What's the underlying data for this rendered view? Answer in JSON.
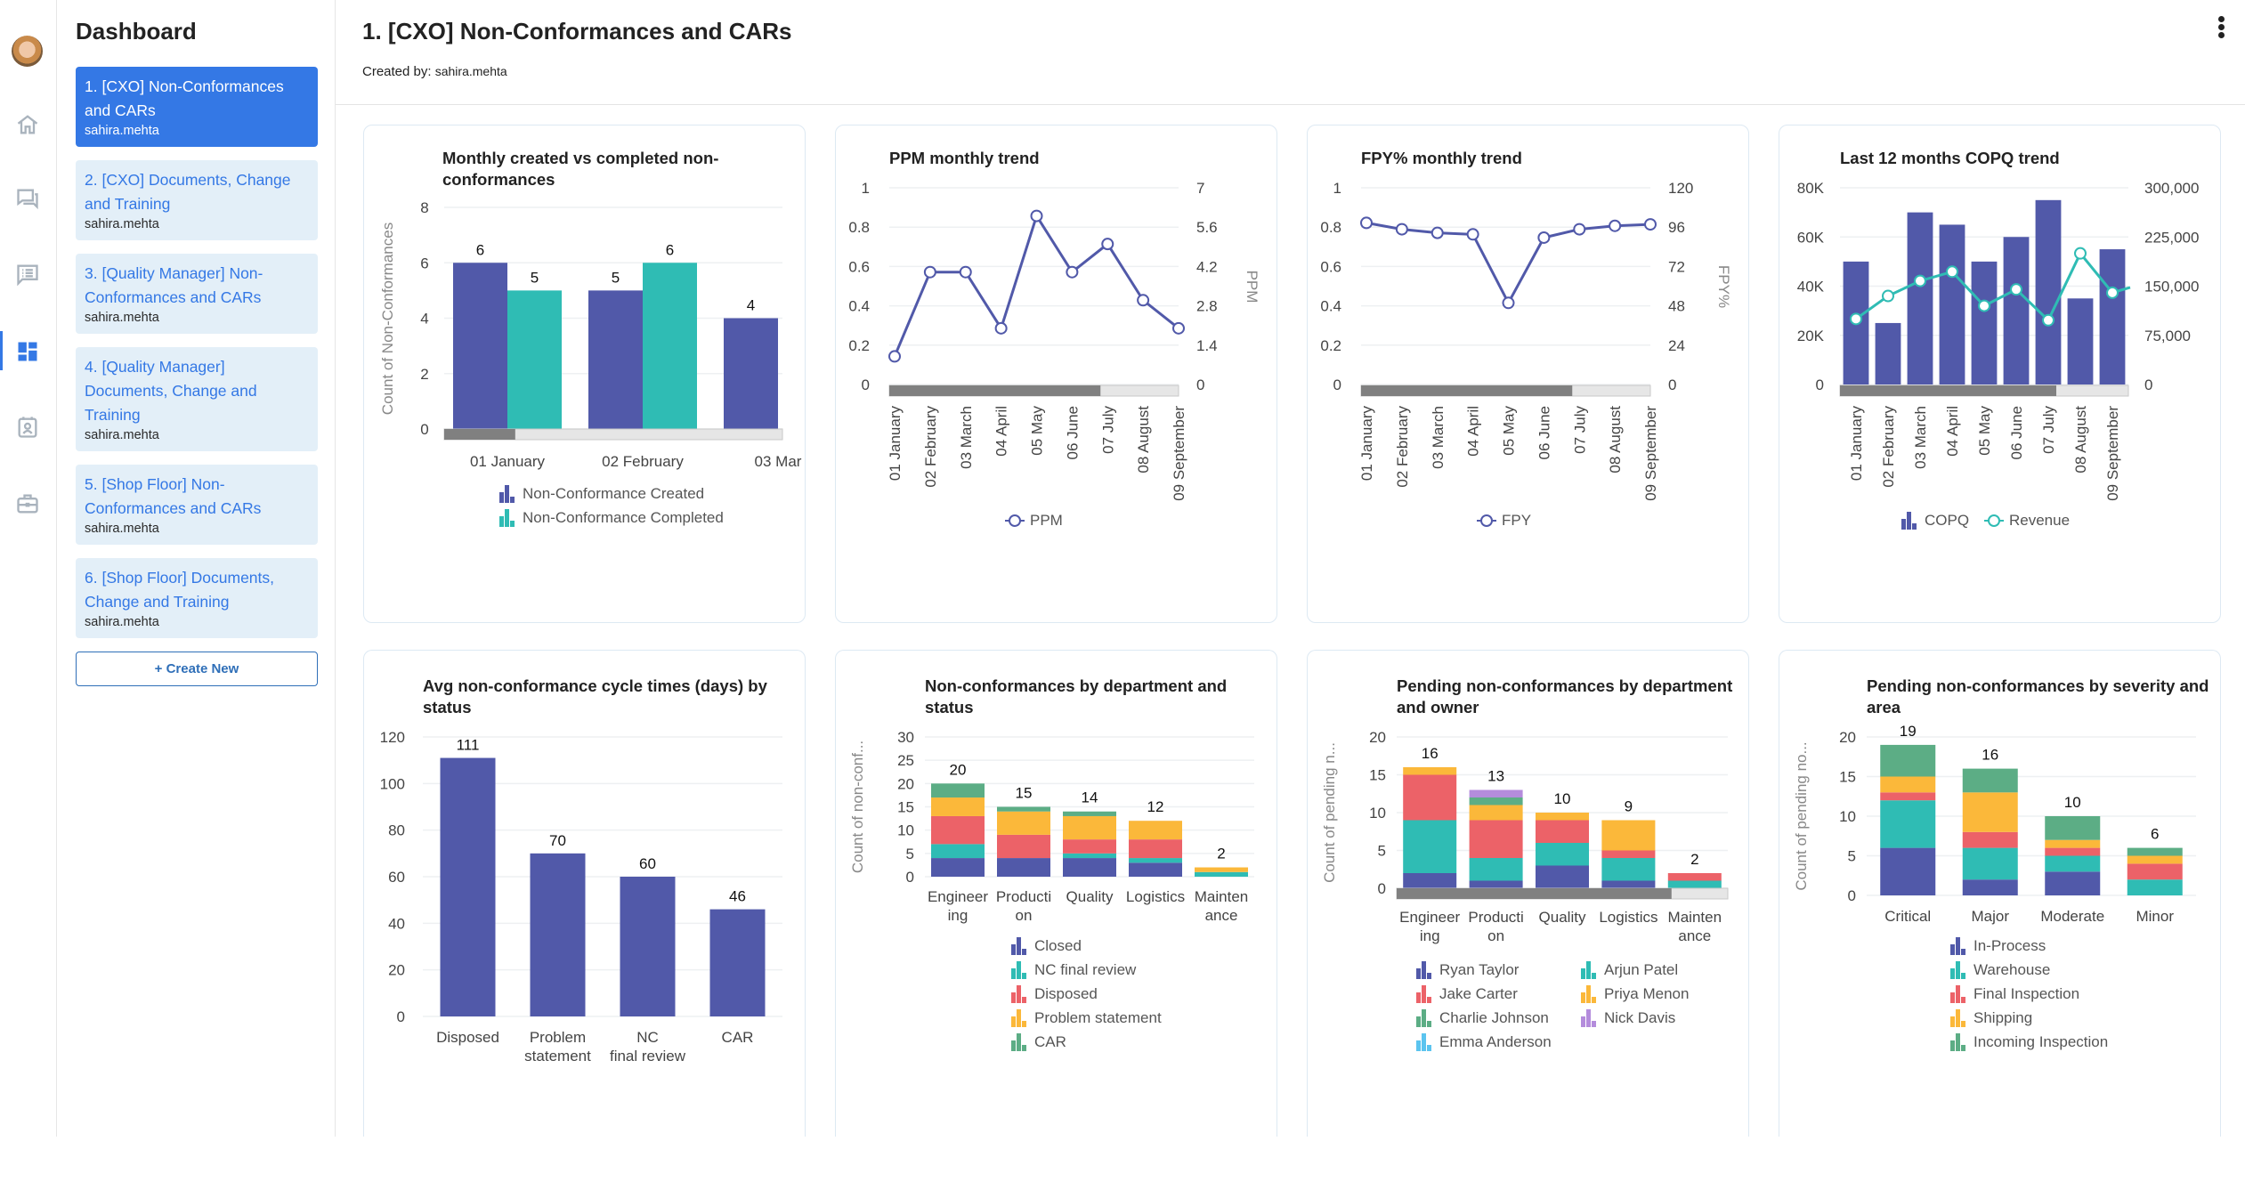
{
  "rail": {
    "icons": [
      "avatar",
      "home-icon",
      "chat-icon",
      "feed-icon",
      "dashboard-icon",
      "contact-card-icon",
      "briefcase-icon"
    ],
    "active": "dashboard-icon"
  },
  "sidebar": {
    "title": "Dashboard",
    "items": [
      {
        "title": "1. [CXO] Non-Conformances and CARs",
        "owner": "sahira.mehta",
        "active": true
      },
      {
        "title": "2. [CXO] Documents, Change and Training",
        "owner": "sahira.mehta",
        "active": false
      },
      {
        "title": "3. [Quality Manager] Non-Conformances and CARs",
        "owner": "sahira.mehta",
        "active": false
      },
      {
        "title": "4. [Quality Manager] Documents, Change and Training",
        "owner": "sahira.mehta",
        "active": false
      },
      {
        "title": "5. [Shop Floor] Non-Conformances and CARs",
        "owner": "sahira.mehta",
        "active": false
      },
      {
        "title": "6. [Shop Floor] Documents, Change and Training",
        "owner": "sahira.mehta",
        "active": false
      }
    ],
    "create_label": "+ Create New"
  },
  "header": {
    "title": "1. [CXO] Non-Conformances and CARs",
    "created_by_label": "Created by:",
    "created_by_user": "sahira.mehta",
    "menu_icon": "more-vertical-icon"
  },
  "colors": {
    "purple": "#5159a9",
    "teal": "#2fbcb4",
    "red": "#ec6268",
    "yellow": "#fbb83a",
    "green": "#5cad85",
    "lavender": "#b48cdc",
    "lightblue": "#5bc4ef",
    "accent": "#3478e5"
  },
  "chart_data": [
    {
      "id": "monthly-created-completed",
      "type": "bar",
      "title": "Monthly created vs completed non-conformances",
      "xlabel": "",
      "ylabel": "Count of Non-Conformances",
      "ylim": [
        0,
        8
      ],
      "yticks": [
        "0",
        "2",
        "4",
        "6",
        "8"
      ],
      "categories": [
        "01 January",
        "02 February",
        "03 Mar"
      ],
      "series": [
        {
          "name": "Non-Conformance Created",
          "color": "#5159a9",
          "values": [
            6,
            5,
            4
          ]
        },
        {
          "name": "Non-Conformance Completed",
          "color": "#2fbcb4",
          "values": [
            5,
            6,
            null
          ]
        }
      ],
      "data_labels": true,
      "scrollbar_fraction": 0.21,
      "legend": "bottom"
    },
    {
      "id": "ppm-monthly-trend",
      "type": "line",
      "title": "PPM monthly trend",
      "ylabel_right": "PPM",
      "yticks_left": [
        "0",
        "0.2",
        "0.4",
        "0.6",
        "0.8",
        "1"
      ],
      "yticks_right": [
        "0",
        "1.4",
        "2.8",
        "4.2",
        "5.6",
        "7"
      ],
      "ylim_right": [
        0,
        7
      ],
      "categories": [
        "01 January",
        "02 February",
        "03 March",
        "04 April",
        "05 May",
        "06 June",
        "07 July",
        "08 August",
        "09 September"
      ],
      "series": [
        {
          "name": "PPM",
          "color": "#5159a9",
          "axis": "right",
          "values": [
            1,
            4,
            4,
            2,
            6,
            4,
            5,
            3,
            2
          ]
        }
      ],
      "scrollbar_fraction": 0.73,
      "legend": "bottom"
    },
    {
      "id": "fpy-monthly-trend",
      "type": "line",
      "title": "FPY% monthly trend",
      "ylabel_right": "FPY%",
      "yticks_left": [
        "0",
        "0.2",
        "0.4",
        "0.6",
        "0.8",
        "1"
      ],
      "yticks_right": [
        "0",
        "24",
        "48",
        "72",
        "96",
        "120"
      ],
      "ylim_right": [
        0,
        120
      ],
      "categories": [
        "01 January",
        "02 February",
        "03 March",
        "04 April",
        "05 May",
        "06 June",
        "07 July",
        "08 August",
        "09 September"
      ],
      "series": [
        {
          "name": "FPY",
          "color": "#5159a9",
          "axis": "right",
          "values": [
            98.6,
            94.7,
            92.5,
            91.6,
            49.8,
            89.6,
            94.7,
            96.8,
            97.7
          ]
        }
      ],
      "scrollbar_fraction": 0.73,
      "legend": "bottom"
    },
    {
      "id": "copq-trend",
      "type": "bar",
      "title": "Last 12 months COPQ trend",
      "yticks_left": [
        "0",
        "20K",
        "40K",
        "60K",
        "80K"
      ],
      "ylim_left": [
        0,
        80000
      ],
      "yticks_right": [
        "0",
        "75,000",
        "150,000",
        "225,000",
        "300,000"
      ],
      "ylim_right": [
        0,
        300000
      ],
      "categories": [
        "01 January",
        "02 February",
        "03 March",
        "04 April",
        "05 May",
        "06 June",
        "07 July",
        "08 August",
        "09 September"
      ],
      "series": [
        {
          "name": "COPQ",
          "kind": "bar",
          "color": "#5159a9",
          "axis": "left",
          "values": [
            50000,
            25000,
            70000,
            65000,
            50000,
            60000,
            75000,
            35000,
            55000
          ]
        },
        {
          "name": "Revenue",
          "kind": "line",
          "color": "#2fbcb4",
          "axis": "right",
          "values": [
            100000,
            135000,
            158000,
            172000,
            120000,
            145000,
            98000,
            200000,
            140000
          ]
        }
      ],
      "scrollbar_fraction": 0.75,
      "legend": "bottom"
    },
    {
      "id": "cycle-times",
      "type": "bar",
      "title": "Avg non-conformance cycle times (days) by status",
      "ylim": [
        0,
        120
      ],
      "yticks": [
        "0",
        "20",
        "40",
        "60",
        "80",
        "100",
        "120"
      ],
      "categories": [
        "Disposed",
        "Problem statement",
        "NC final review",
        "CAR"
      ],
      "values": [
        111,
        70,
        60,
        46
      ],
      "color": "#5159a9",
      "data_labels": true
    },
    {
      "id": "nc-by-dept-status",
      "type": "bar",
      "stacked": true,
      "title": "Non-conformances by department and status",
      "ylabel": "Count of non-conf...",
      "ylim": [
        0,
        30
      ],
      "yticks": [
        "0",
        "5",
        "10",
        "15",
        "20",
        "25",
        "30"
      ],
      "categories": [
        "Engineering",
        "Production",
        "Quality",
        "Logistics",
        "Maintenance"
      ],
      "category_labels": [
        [
          "Engineer",
          "ing"
        ],
        [
          "Producti",
          "on"
        ],
        [
          "Quality"
        ],
        [
          "Logistics"
        ],
        [
          "Mainten",
          "ance"
        ]
      ],
      "totals": [
        20,
        15,
        14,
        12,
        2
      ],
      "series": [
        {
          "name": "Closed",
          "color": "#5159a9",
          "values": [
            4,
            4,
            4,
            3,
            0
          ]
        },
        {
          "name": "NC final review",
          "color": "#2fbcb4",
          "values": [
            3,
            0,
            1,
            1,
            1
          ]
        },
        {
          "name": "Disposed",
          "color": "#ec6268",
          "values": [
            6,
            5,
            3,
            4,
            0
          ]
        },
        {
          "name": "Problem statement",
          "color": "#fbb83a",
          "values": [
            4,
            5,
            5,
            4,
            1
          ]
        },
        {
          "name": "CAR",
          "color": "#5cad85",
          "values": [
            3,
            1,
            1,
            0,
            0
          ]
        }
      ],
      "legend": "bottom"
    },
    {
      "id": "pending-by-dept-owner",
      "type": "bar",
      "stacked": true,
      "title": "Pending non-conformances by department and owner",
      "ylabel": "Count of pending n...",
      "ylim": [
        0,
        20
      ],
      "yticks": [
        "0",
        "5",
        "10",
        "15",
        "20"
      ],
      "categories": [
        "Engineering",
        "Production",
        "Quality",
        "Logistics",
        "Maintenance"
      ],
      "category_labels": [
        [
          "Engineer",
          "ing"
        ],
        [
          "Producti",
          "on"
        ],
        [
          "Quality"
        ],
        [
          "Logistics"
        ],
        [
          "Mainten",
          "ance"
        ]
      ],
      "totals": [
        16,
        13,
        10,
        9,
        2
      ],
      "series": [
        {
          "name": "Ryan Taylor",
          "color": "#5159a9",
          "values": [
            2,
            1,
            3,
            1,
            0
          ]
        },
        {
          "name": "Arjun Patel",
          "color": "#2fbcb4",
          "values": [
            7,
            3,
            3,
            3,
            1
          ]
        },
        {
          "name": "Jake Carter",
          "color": "#ec6268",
          "values": [
            6,
            5,
            3,
            1,
            1
          ]
        },
        {
          "name": "Priya Menon",
          "color": "#fbb83a",
          "values": [
            1,
            2,
            1,
            4,
            0
          ]
        },
        {
          "name": "Charlie Johnson",
          "color": "#5cad85",
          "values": [
            0,
            1,
            0,
            0,
            0
          ]
        },
        {
          "name": "Nick Davis",
          "color": "#b48cdc",
          "values": [
            0,
            1,
            0,
            0,
            0
          ]
        },
        {
          "name": "Emma Anderson",
          "color": "#5bc4ef",
          "values": [
            0,
            0,
            0,
            0,
            0
          ]
        }
      ],
      "legend_order": [
        "Ryan Taylor",
        "Arjun Patel",
        "Jake Carter",
        "Priya Menon",
        "Charlie Johnson",
        "Nick Davis",
        "Emma Anderson"
      ],
      "scrollbar_fraction": 0.83,
      "legend": "bottom"
    },
    {
      "id": "pending-by-severity-area",
      "type": "bar",
      "stacked": true,
      "title": "Pending non-conformances by severity and area",
      "ylabel": "Count of pending no...",
      "ylim": [
        0,
        20
      ],
      "yticks": [
        "0",
        "5",
        "10",
        "15",
        "20"
      ],
      "categories": [
        "Critical",
        "Major",
        "Moderate",
        "Minor"
      ],
      "category_labels": [
        [
          "Critical"
        ],
        [
          "Major"
        ],
        [
          "Moderate"
        ],
        [
          "Minor"
        ]
      ],
      "totals": [
        19,
        16,
        10,
        6
      ],
      "series": [
        {
          "name": "In-Process",
          "color": "#5159a9",
          "values": [
            6,
            2,
            3,
            0
          ]
        },
        {
          "name": "Warehouse",
          "color": "#2fbcb4",
          "values": [
            6,
            4,
            2,
            2
          ]
        },
        {
          "name": "Final Inspection",
          "color": "#ec6268",
          "values": [
            1,
            2,
            1,
            2
          ]
        },
        {
          "name": "Shipping",
          "color": "#fbb83a",
          "values": [
            2,
            5,
            1,
            1
          ]
        },
        {
          "name": "Incoming Inspection",
          "color": "#5cad85",
          "values": [
            4,
            3,
            3,
            1
          ]
        }
      ],
      "legend": "bottom"
    }
  ]
}
